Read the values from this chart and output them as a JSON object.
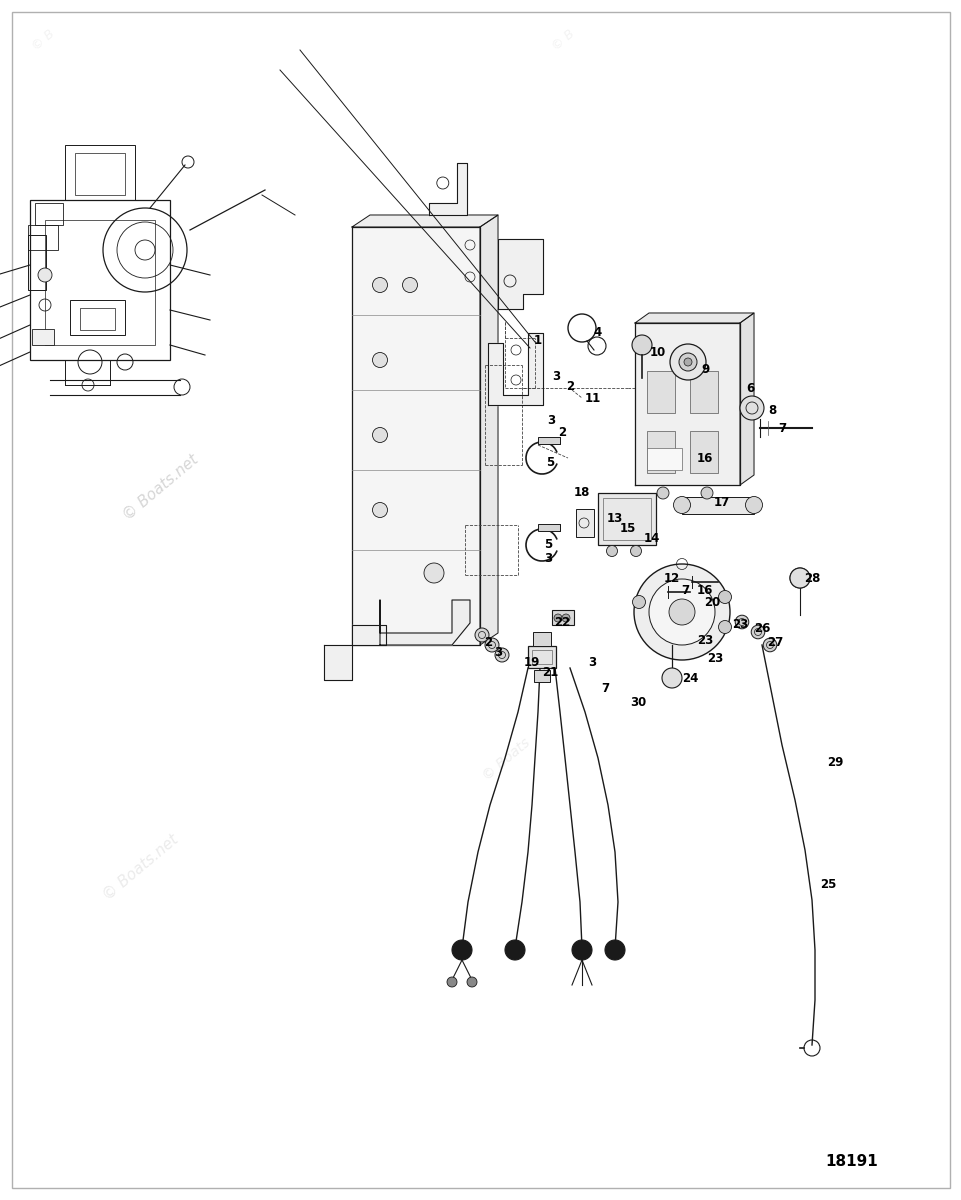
{
  "figure_width": 9.62,
  "figure_height": 12.0,
  "dpi": 100,
  "background_color": "#ffffff",
  "watermark_color_dark": "#bbbbbb",
  "watermark_color_light": "#d8d8d8",
  "diagram_id": "18191",
  "label_fontsize": 8.5,
  "label_color": "#000000",
  "line_color": "#1a1a1a",
  "line_lw": 0.8,
  "border_color": "#b0b0b0",
  "labels": [
    [
      "1",
      5.38,
      8.6
    ],
    [
      "4",
      5.98,
      8.68
    ],
    [
      "3",
      5.56,
      8.23
    ],
    [
      "2",
      5.7,
      8.13
    ],
    [
      "11",
      5.93,
      8.02
    ],
    [
      "3",
      5.51,
      7.8
    ],
    [
      "2",
      5.62,
      7.68
    ],
    [
      "5",
      5.5,
      7.38
    ],
    [
      "18",
      5.82,
      7.08
    ],
    [
      "10",
      6.58,
      8.48
    ],
    [
      "9",
      7.05,
      8.3
    ],
    [
      "6",
      7.5,
      8.12
    ],
    [
      "8",
      7.72,
      7.9
    ],
    [
      "7",
      7.82,
      7.72
    ],
    [
      "16",
      7.05,
      7.42
    ],
    [
      "17",
      7.22,
      6.98
    ],
    [
      "13",
      6.15,
      6.82
    ],
    [
      "15",
      6.28,
      6.72
    ],
    [
      "14",
      6.52,
      6.62
    ],
    [
      "5",
      5.48,
      6.55
    ],
    [
      "3",
      5.48,
      6.42
    ],
    [
      "12",
      6.72,
      6.22
    ],
    [
      "7",
      6.85,
      6.1
    ],
    [
      "16",
      7.05,
      6.1
    ],
    [
      "20",
      7.12,
      5.98
    ],
    [
      "2",
      4.88,
      5.58
    ],
    [
      "3",
      4.98,
      5.48
    ],
    [
      "22",
      5.62,
      5.78
    ],
    [
      "19",
      5.32,
      5.38
    ],
    [
      "21",
      5.5,
      5.28
    ],
    [
      "3",
      5.92,
      5.38
    ],
    [
      "7",
      6.05,
      5.12
    ],
    [
      "30",
      6.38,
      4.98
    ],
    [
      "23",
      7.05,
      5.6
    ],
    [
      "23",
      7.15,
      5.42
    ],
    [
      "24",
      6.9,
      5.22
    ],
    [
      "23",
      7.4,
      5.75
    ],
    [
      "26",
      7.62,
      5.72
    ],
    [
      "27",
      7.75,
      5.58
    ],
    [
      "28",
      8.12,
      6.22
    ],
    [
      "25",
      8.28,
      3.15
    ],
    [
      "29",
      8.35,
      4.38
    ]
  ]
}
